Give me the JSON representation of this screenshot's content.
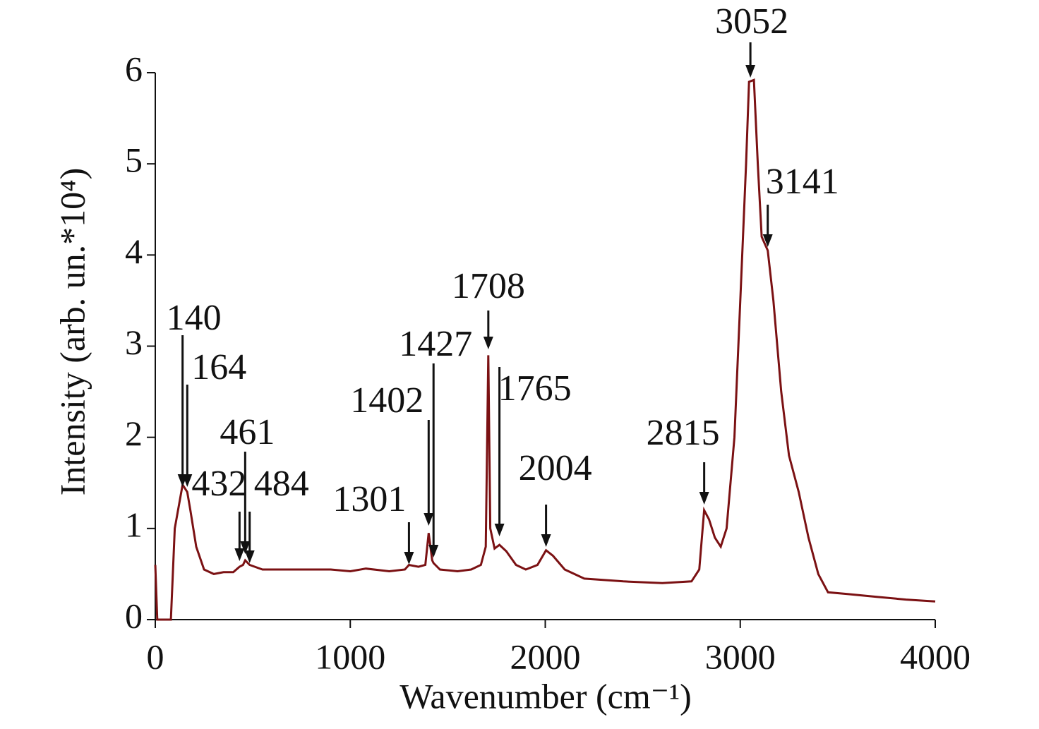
{
  "chart_data": {
    "type": "line",
    "xlabel": "Wavenumber (cm⁻¹)",
    "ylabel": "Intensity (arb. un.*10⁴)",
    "color": "#7b1113",
    "x": [
      0,
      10,
      80,
      100,
      140,
      164,
      180,
      210,
      250,
      300,
      350,
      400,
      432,
      450,
      461,
      484,
      550,
      700,
      900,
      1000,
      1080,
      1200,
      1280,
      1301,
      1350,
      1385,
      1402,
      1420,
      1427,
      1460,
      1550,
      1620,
      1670,
      1695,
      1708,
      1718,
      1740,
      1765,
      1800,
      1850,
      1900,
      1960,
      2004,
      2040,
      2100,
      2200,
      2400,
      2600,
      2750,
      2790,
      2815,
      2840,
      2870,
      2900,
      2930,
      2970,
      3000,
      3030,
      3045,
      3070,
      3090,
      3110,
      3141,
      3170,
      3210,
      3250,
      3300,
      3350,
      3400,
      3450,
      3550,
      3700,
      3850,
      4000
    ],
    "values": [
      0.6,
      0,
      0,
      1.0,
      1.48,
      1.4,
      1.2,
      0.8,
      0.55,
      0.5,
      0.52,
      0.52,
      0.58,
      0.6,
      0.65,
      0.6,
      0.55,
      0.55,
      0.55,
      0.53,
      0.56,
      0.53,
      0.55,
      0.6,
      0.58,
      0.6,
      0.95,
      0.65,
      0.62,
      0.55,
      0.53,
      0.55,
      0.6,
      0.8,
      2.9,
      1.0,
      0.78,
      0.82,
      0.75,
      0.6,
      0.55,
      0.6,
      0.76,
      0.7,
      0.55,
      0.45,
      0.42,
      0.4,
      0.42,
      0.55,
      1.2,
      1.1,
      0.9,
      0.8,
      1.0,
      2.0,
      3.5,
      5.0,
      5.9,
      5.92,
      5.0,
      4.2,
      4.05,
      3.5,
      2.5,
      1.8,
      1.4,
      0.9,
      0.5,
      0.3,
      0.28,
      0.25,
      0.22,
      0.2
    ],
    "xlim": [
      0,
      4000
    ],
    "xticks": [
      0,
      1000,
      2000,
      3000,
      4000
    ],
    "ylim": [
      0,
      6
    ],
    "yticks": [
      0,
      1,
      2,
      3,
      4,
      5,
      6
    ],
    "peaks": [
      140,
      164,
      432,
      461,
      484,
      1301,
      1402,
      1427,
      1708,
      1765,
      2004,
      2815,
      3052,
      3141
    ]
  }
}
